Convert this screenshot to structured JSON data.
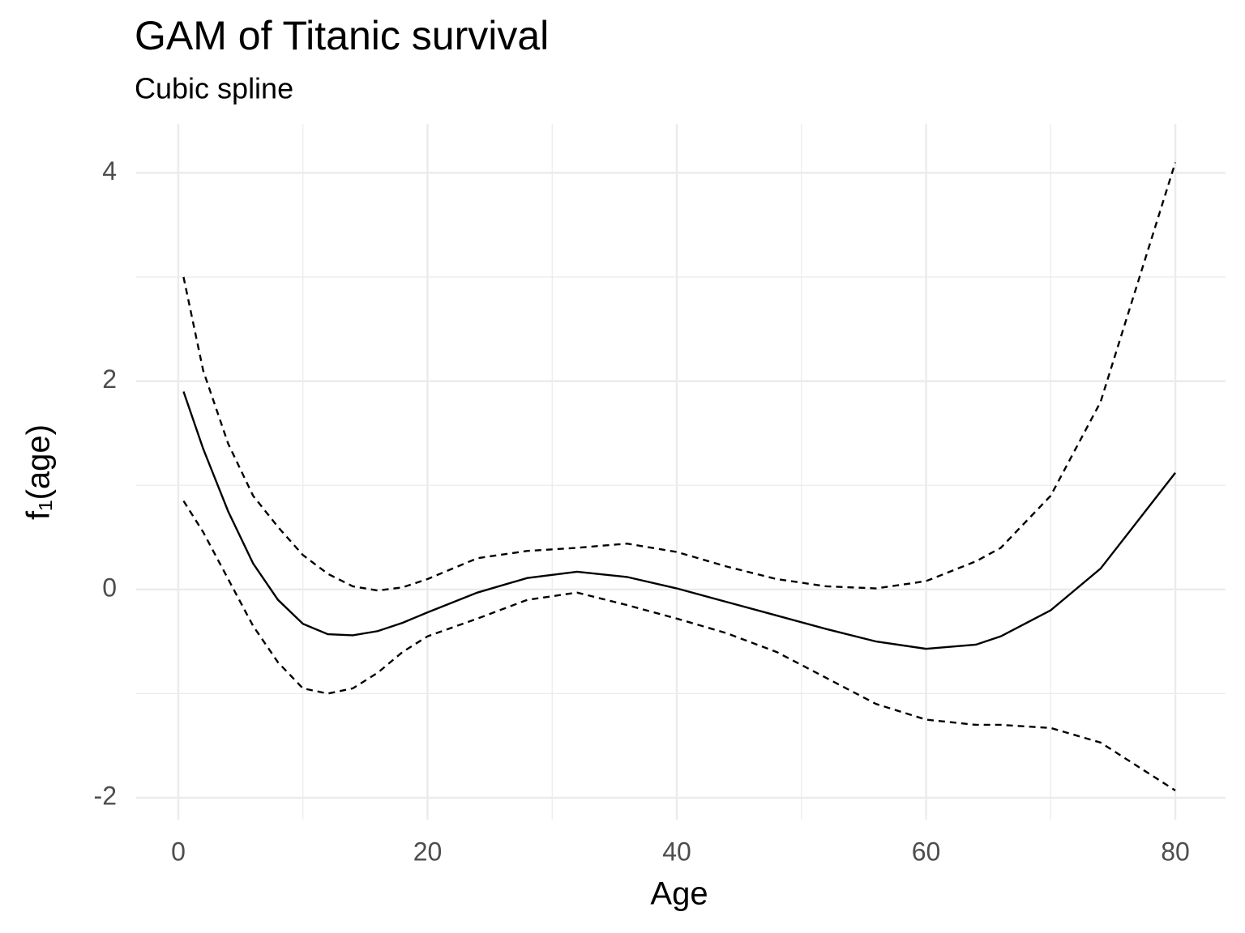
{
  "chart_data": {
    "type": "line",
    "title": "GAM of Titanic survival",
    "subtitle": "Cubic spline",
    "xlabel": "Age",
    "ylabel": "f₁(age)",
    "x": [
      0.42,
      2,
      4,
      6,
      8,
      10,
      12,
      14,
      16,
      18,
      20,
      24,
      28,
      32,
      36,
      40,
      44,
      48,
      52,
      56,
      60,
      64,
      66,
      70,
      74,
      80
    ],
    "series": [
      {
        "color": "#000000",
        "style": "solid",
        "values": [
          1.9,
          1.35,
          0.75,
          0.25,
          -0.1,
          -0.33,
          -0.43,
          -0.44,
          -0.4,
          -0.32,
          -0.22,
          -0.03,
          0.11,
          0.17,
          0.12,
          0.01,
          -0.12,
          -0.25,
          -0.38,
          -0.5,
          -0.57,
          -0.53,
          -0.45,
          -0.2,
          0.2,
          1.12
        ]
      },
      {
        "color": "#000000",
        "style": "dashed",
        "values": [
          3.0,
          2.1,
          1.4,
          0.9,
          0.6,
          0.33,
          0.15,
          0.03,
          -0.01,
          0.02,
          0.1,
          0.3,
          0.37,
          0.4,
          0.44,
          0.36,
          0.22,
          0.1,
          0.03,
          0.01,
          0.08,
          0.27,
          0.4,
          0.9,
          1.8,
          4.1
        ]
      },
      {
        "color": "#000000",
        "style": "dashed",
        "values": [
          0.85,
          0.55,
          0.1,
          -0.35,
          -0.7,
          -0.95,
          -1.0,
          -0.95,
          -0.8,
          -0.6,
          -0.45,
          -0.28,
          -0.1,
          -0.03,
          -0.15,
          -0.28,
          -0.42,
          -0.6,
          -0.85,
          -1.1,
          -1.25,
          -1.3,
          -1.3,
          -1.33,
          -1.47,
          -1.93
        ]
      }
    ],
    "xlim": [
      -3.38,
      84.03
    ],
    "ylim": [
      -2.21,
      4.47
    ],
    "xticks": [
      0,
      20,
      40,
      60,
      80
    ],
    "yticks": [
      -2,
      0,
      2,
      4
    ],
    "xminor": [
      10,
      30,
      50,
      70
    ],
    "yminor": [
      -1,
      1,
      3
    ],
    "grid": true
  }
}
